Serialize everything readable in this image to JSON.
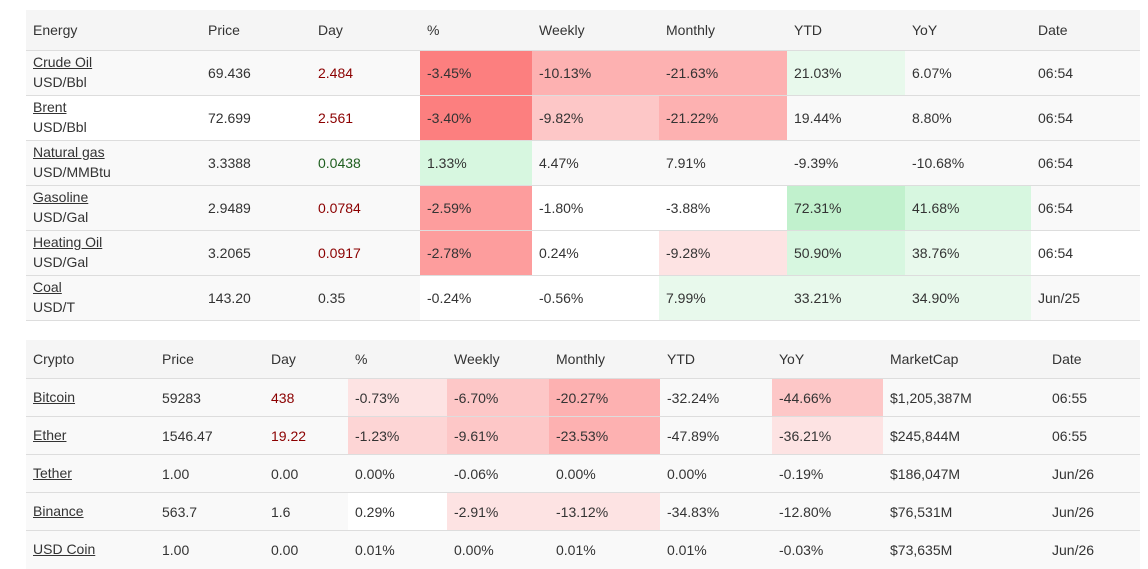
{
  "energy": {
    "headers": [
      "Energy",
      "Price",
      "Day",
      "%",
      "Weekly",
      "Monthly",
      "YTD",
      "YoY",
      "Date"
    ],
    "rows": [
      {
        "name": "Crude Oil",
        "unit": "USD/Bbl",
        "price": "69.436",
        "day": "2.484",
        "pct": "-3.45%",
        "weekly": "-10.13%",
        "monthly": "-21.63%",
        "ytd": "21.03%",
        "yoy": "6.07%",
        "date": "06:54"
      },
      {
        "name": "Brent",
        "unit": "USD/Bbl",
        "price": "72.699",
        "day": "2.561",
        "pct": "-3.40%",
        "weekly": "-9.82%",
        "monthly": "-21.22%",
        "ytd": "19.44%",
        "yoy": "8.80%",
        "date": "06:54"
      },
      {
        "name": "Natural gas",
        "unit": "USD/MMBtu",
        "price": "3.3388",
        "day": "0.0438",
        "pct": "1.33%",
        "weekly": "4.47%",
        "monthly": "7.91%",
        "ytd": "-9.39%",
        "yoy": "-10.68%",
        "date": "06:54"
      },
      {
        "name": "Gasoline",
        "unit": "USD/Gal",
        "price": "2.9489",
        "day": "0.0784",
        "pct": "-2.59%",
        "weekly": "-1.80%",
        "monthly": "-3.88%",
        "ytd": "72.31%",
        "yoy": "41.68%",
        "date": "06:54"
      },
      {
        "name": "Heating Oil",
        "unit": "USD/Gal",
        "price": "3.2065",
        "day": "0.0917",
        "pct": "-2.78%",
        "weekly": "0.24%",
        "monthly": "-9.28%",
        "ytd": "50.90%",
        "yoy": "38.76%",
        "date": "06:54"
      },
      {
        "name": "Coal",
        "unit": "USD/T",
        "price": "143.20",
        "day": "0.35",
        "pct": "-0.24%",
        "weekly": "-0.56%",
        "monthly": "7.99%",
        "ytd": "33.21%",
        "yoy": "34.90%",
        "date": "Jun/25"
      }
    ]
  },
  "crypto": {
    "headers": [
      "Crypto",
      "Price",
      "Day",
      "%",
      "Weekly",
      "Monthly",
      "YTD",
      "YoY",
      "MarketCap",
      "Date"
    ],
    "rows": [
      {
        "name": "Bitcoin",
        "price": "59283",
        "day": "438",
        "pct": "-0.73%",
        "weekly": "-6.70%",
        "monthly": "-20.27%",
        "ytd": "-32.24%",
        "yoy": "-44.66%",
        "mcap": "$1,205,387M",
        "date": "06:55"
      },
      {
        "name": "Ether",
        "price": "1546.47",
        "day": "19.22",
        "pct": "-1.23%",
        "weekly": "-9.61%",
        "monthly": "-23.53%",
        "ytd": "-47.89%",
        "yoy": "-36.21%",
        "mcap": "$245,844M",
        "date": "06:55"
      },
      {
        "name": "Tether",
        "price": "1.00",
        "day": "0.00",
        "pct": "0.00%",
        "weekly": "-0.06%",
        "monthly": "0.00%",
        "ytd": "0.00%",
        "yoy": "-0.19%",
        "mcap": "$186,047M",
        "date": "Jun/26"
      },
      {
        "name": "Binance",
        "price": "563.7",
        "day": "1.6",
        "pct": "0.29%",
        "weekly": "-2.91%",
        "monthly": "-13.12%",
        "ytd": "-34.83%",
        "yoy": "-12.80%",
        "mcap": "$76,531M",
        "date": "Jun/26"
      },
      {
        "name": "USD Coin",
        "price": "1.00",
        "day": "0.00",
        "pct": "0.01%",
        "weekly": "0.00%",
        "monthly": "0.01%",
        "ytd": "0.01%",
        "yoy": "-0.03%",
        "mcap": "$73,635M",
        "date": "Jun/26"
      }
    ]
  },
  "colors": {
    "red_strong": "#fc7f7f",
    "red_mid": "#fd9d9d",
    "red_light": "#fdb1b1",
    "red_pale": "#fdc7c7",
    "red_faint": "#fde3e3",
    "green_mid": "#c1f1cd",
    "green_light": "#d7f7e0",
    "green_faint": "#e8f9ec",
    "day_negative_text": "#8b0000",
    "day_positive_text": "#1e5e1e"
  }
}
